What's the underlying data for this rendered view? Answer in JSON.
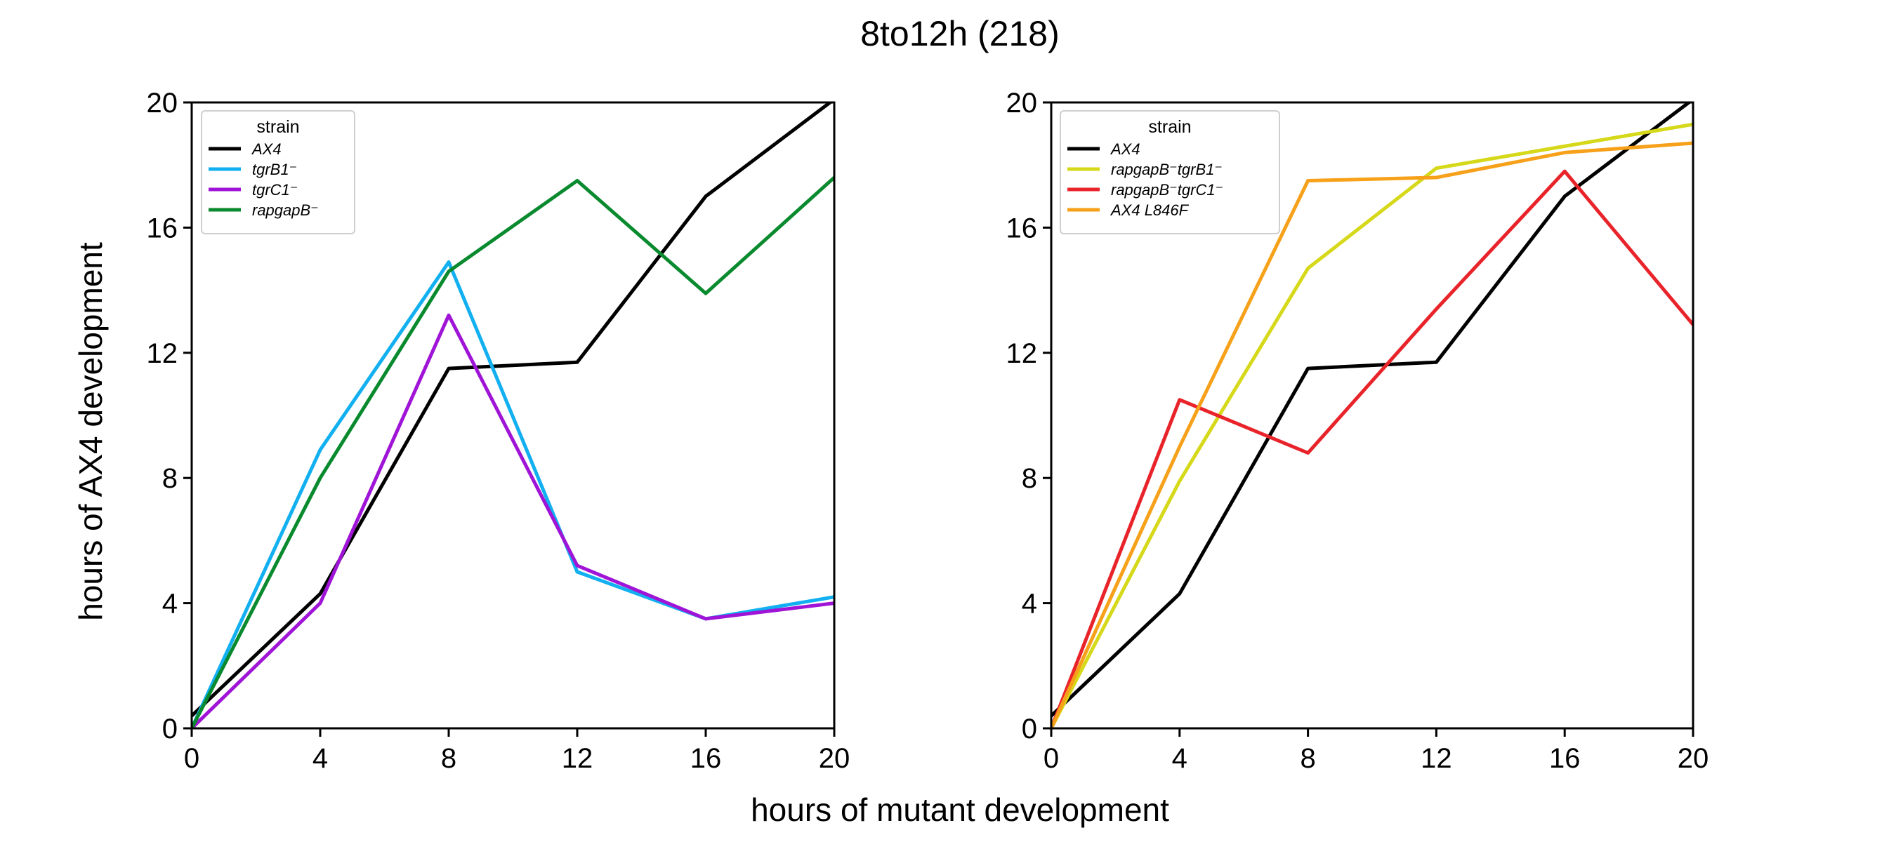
{
  "figure": {
    "title": "8to12h (218)",
    "xlabel": "hours of mutant development",
    "ylabel": "hours of AX4 development"
  },
  "chart_data": [
    {
      "type": "line",
      "xlim": [
        0,
        20
      ],
      "ylim": [
        0,
        20
      ],
      "xticks": [
        "0",
        "4",
        "8",
        "12",
        "16",
        "20"
      ],
      "yticks": [
        "0",
        "4",
        "8",
        "12",
        "16",
        "20"
      ],
      "grid": false,
      "legend": {
        "title": "strain",
        "placement": "top-left"
      },
      "series": [
        {
          "name": "AX4",
          "color": "#000000",
          "x": [
            0,
            4,
            8,
            12,
            16,
            20
          ],
          "y": [
            0.4,
            4.3,
            11.5,
            11.7,
            17.0,
            20.1
          ]
        },
        {
          "name": "tgrB1⁻",
          "color": "#12b0f0",
          "x": [
            0,
            4,
            8,
            12,
            16,
            20
          ],
          "y": [
            0.0,
            8.9,
            14.9,
            5.0,
            3.5,
            4.2
          ]
        },
        {
          "name": "tgrC1⁻",
          "color": "#9f14d6",
          "x": [
            0,
            4,
            8,
            12,
            16,
            20
          ],
          "y": [
            0.0,
            4.0,
            13.2,
            5.2,
            3.5,
            4.0
          ]
        },
        {
          "name": "rapgapB⁻",
          "color": "#0a8a2e",
          "x": [
            0,
            4,
            8,
            12,
            16,
            20
          ],
          "y": [
            0.0,
            8.0,
            14.6,
            17.5,
            13.9,
            17.6
          ]
        }
      ]
    },
    {
      "type": "line",
      "xlim": [
        0,
        20
      ],
      "ylim": [
        0,
        20
      ],
      "xticks": [
        "0",
        "4",
        "8",
        "12",
        "16",
        "20"
      ],
      "yticks": [
        "0",
        "4",
        "8",
        "12",
        "16",
        "20"
      ],
      "grid": false,
      "legend": {
        "title": "strain",
        "placement": "top-left"
      },
      "series": [
        {
          "name": "AX4",
          "color": "#000000",
          "x": [
            0,
            4,
            8,
            12,
            16,
            20
          ],
          "y": [
            0.4,
            4.3,
            11.5,
            11.7,
            17.0,
            20.1
          ]
        },
        {
          "name": "rapgapB⁻tgrB1⁻",
          "color": "#d6d81a",
          "x": [
            0,
            4,
            8,
            12,
            16,
            20
          ],
          "y": [
            0.0,
            7.9,
            14.7,
            17.9,
            18.6,
            19.3
          ]
        },
        {
          "name": "rapgapB⁻tgrC1⁻",
          "color": "#e8242a",
          "x": [
            0,
            4,
            8,
            12,
            16,
            20
          ],
          "y": [
            0.0,
            10.5,
            8.8,
            13.4,
            17.8,
            12.9
          ]
        },
        {
          "name": "AX4 L846F",
          "color": "#f7a11a",
          "x": [
            0,
            4,
            8,
            12,
            16,
            20
          ],
          "y": [
            0.0,
            9.0,
            17.5,
            17.6,
            18.4,
            18.7
          ]
        }
      ]
    }
  ]
}
